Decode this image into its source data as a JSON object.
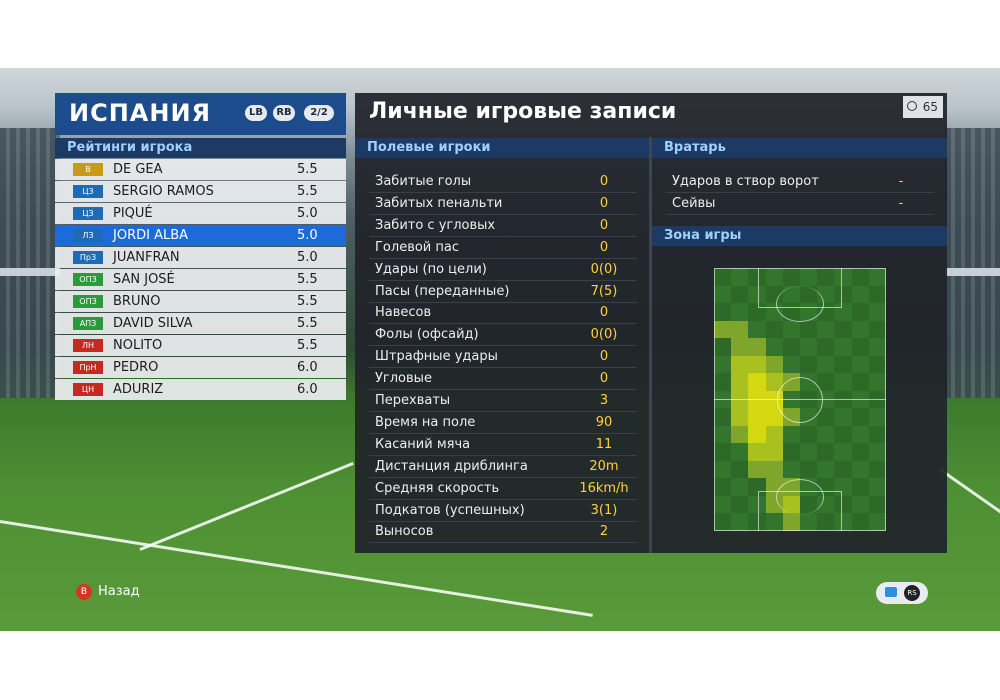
{
  "team": {
    "name": "ИСПАНИЯ",
    "lb": "LB",
    "rb": "RB",
    "page": "2/2"
  },
  "ratings_title": "Рейтинги игрока",
  "players": [
    {
      "pos": "В",
      "pos_color": "#c89a15",
      "name": "DE GEA",
      "rating": "5.5"
    },
    {
      "pos": "ЦЗ",
      "pos_color": "#1e6ab4",
      "name": "SERGIO RAMOS",
      "rating": "5.5"
    },
    {
      "pos": "ЦЗ",
      "pos_color": "#1e6ab4",
      "name": "PIQUÉ",
      "rating": "5.0"
    },
    {
      "pos": "ЛЗ",
      "pos_color": "#1e6ab4",
      "name": "JORDI ALBA",
      "rating": "5.0"
    },
    {
      "pos": "ПрЗ",
      "pos_color": "#1e6ab4",
      "name": "JUANFRAN",
      "rating": "5.0"
    },
    {
      "pos": "ОПЗ",
      "pos_color": "#2a9a3a",
      "name": "SAN JOSÉ",
      "rating": "5.5"
    },
    {
      "pos": "ОПЗ",
      "pos_color": "#2a9a3a",
      "name": "BRUNO",
      "rating": "5.5"
    },
    {
      "pos": "АПЗ",
      "pos_color": "#2a9a3a",
      "name": "DAVID SILVA",
      "rating": "5.5"
    },
    {
      "pos": "ЛН",
      "pos_color": "#c42a22",
      "name": "NOLITO",
      "rating": "5.5"
    },
    {
      "pos": "ПрН",
      "pos_color": "#c42a22",
      "name": "PEDRO",
      "rating": "6.0"
    },
    {
      "pos": "ЦН",
      "pos_color": "#c42a22",
      "name": "ADURIZ",
      "rating": "6.0"
    }
  ],
  "selected_index": 3,
  "main": {
    "title": "Личные игровые записи",
    "timer": "65"
  },
  "field_players_title": "Полевые игроки",
  "stats": [
    {
      "label": "Забитые голы",
      "value": "0"
    },
    {
      "label": "Забитых пенальти",
      "value": "0"
    },
    {
      "label": "Забито с угловых",
      "value": "0"
    },
    {
      "label": "Голевой пас",
      "value": "0"
    },
    {
      "label": "Удары (по цели)",
      "value": "0(0)"
    },
    {
      "label": "Пасы (переданные)",
      "value": "7(5)"
    },
    {
      "label": "Навесов",
      "value": "0"
    },
    {
      "label": "Фолы (офсайд)",
      "value": "0(0)"
    },
    {
      "label": "Штрафные удары",
      "value": "0"
    },
    {
      "label": "Угловые",
      "value": "0"
    },
    {
      "label": "Перехваты",
      "value": "3"
    },
    {
      "label": "Время на поле",
      "value": "90"
    },
    {
      "label": "Касаний мяча",
      "value": "11"
    },
    {
      "label": "Дистанция дриблинга",
      "value": "20m"
    },
    {
      "label": "Средняя скорость",
      "value": "16km/h"
    },
    {
      "label": "Подкатов (успешных)",
      "value": "3(1)"
    },
    {
      "label": "Выносов",
      "value": "2"
    }
  ],
  "goalkeeper_title": "Вратарь",
  "goalkeeper_stats": [
    {
      "label": "Ударов в створ ворот",
      "value": "-"
    },
    {
      "label": "Сейвы",
      "value": "-"
    }
  ],
  "zone_title": "Зона игры",
  "back_button": {
    "key": "B",
    "label": "Назад"
  },
  "rs_button": "RS"
}
